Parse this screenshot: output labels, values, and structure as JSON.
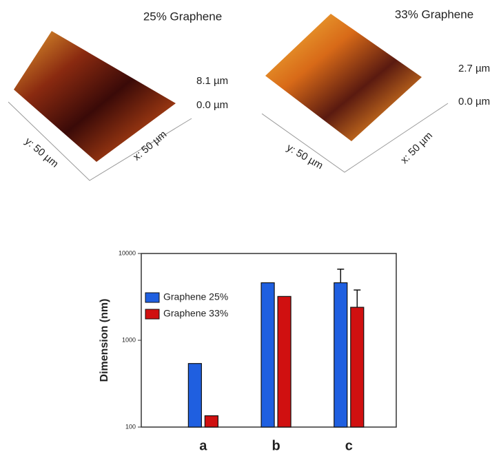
{
  "panels": [
    {
      "title": "25% Graphene",
      "z_top": "8.1 µm",
      "z_bottom": "0.0 µm",
      "y_label": "y: 50 µm",
      "x_label": "x: 50 µm"
    },
    {
      "title": "33% Graphene",
      "z_top": "2.7 µm",
      "z_bottom": "0.0 µm",
      "y_label": "y: 50 µm",
      "x_label": "x: 50 µm"
    }
  ],
  "chart_data": {
    "type": "bar",
    "y_label": "Dimension (nm)",
    "categories": [
      "a",
      "b",
      "c"
    ],
    "series": [
      {
        "name": "Graphene 25%",
        "color": "#1f5fe0",
        "values": [
          540,
          4600,
          4600
        ],
        "errors": [
          null,
          null,
          2000
        ]
      },
      {
        "name": "Graphene 33%",
        "color": "#d01010",
        "values": [
          135,
          3200,
          2400
        ],
        "errors": [
          null,
          null,
          1400
        ]
      }
    ],
    "ylim": [
      100,
      10000
    ],
    "yticks": [
      100,
      1000,
      10000
    ],
    "log_scale": true,
    "grid": false,
    "legend": "upper-left"
  }
}
